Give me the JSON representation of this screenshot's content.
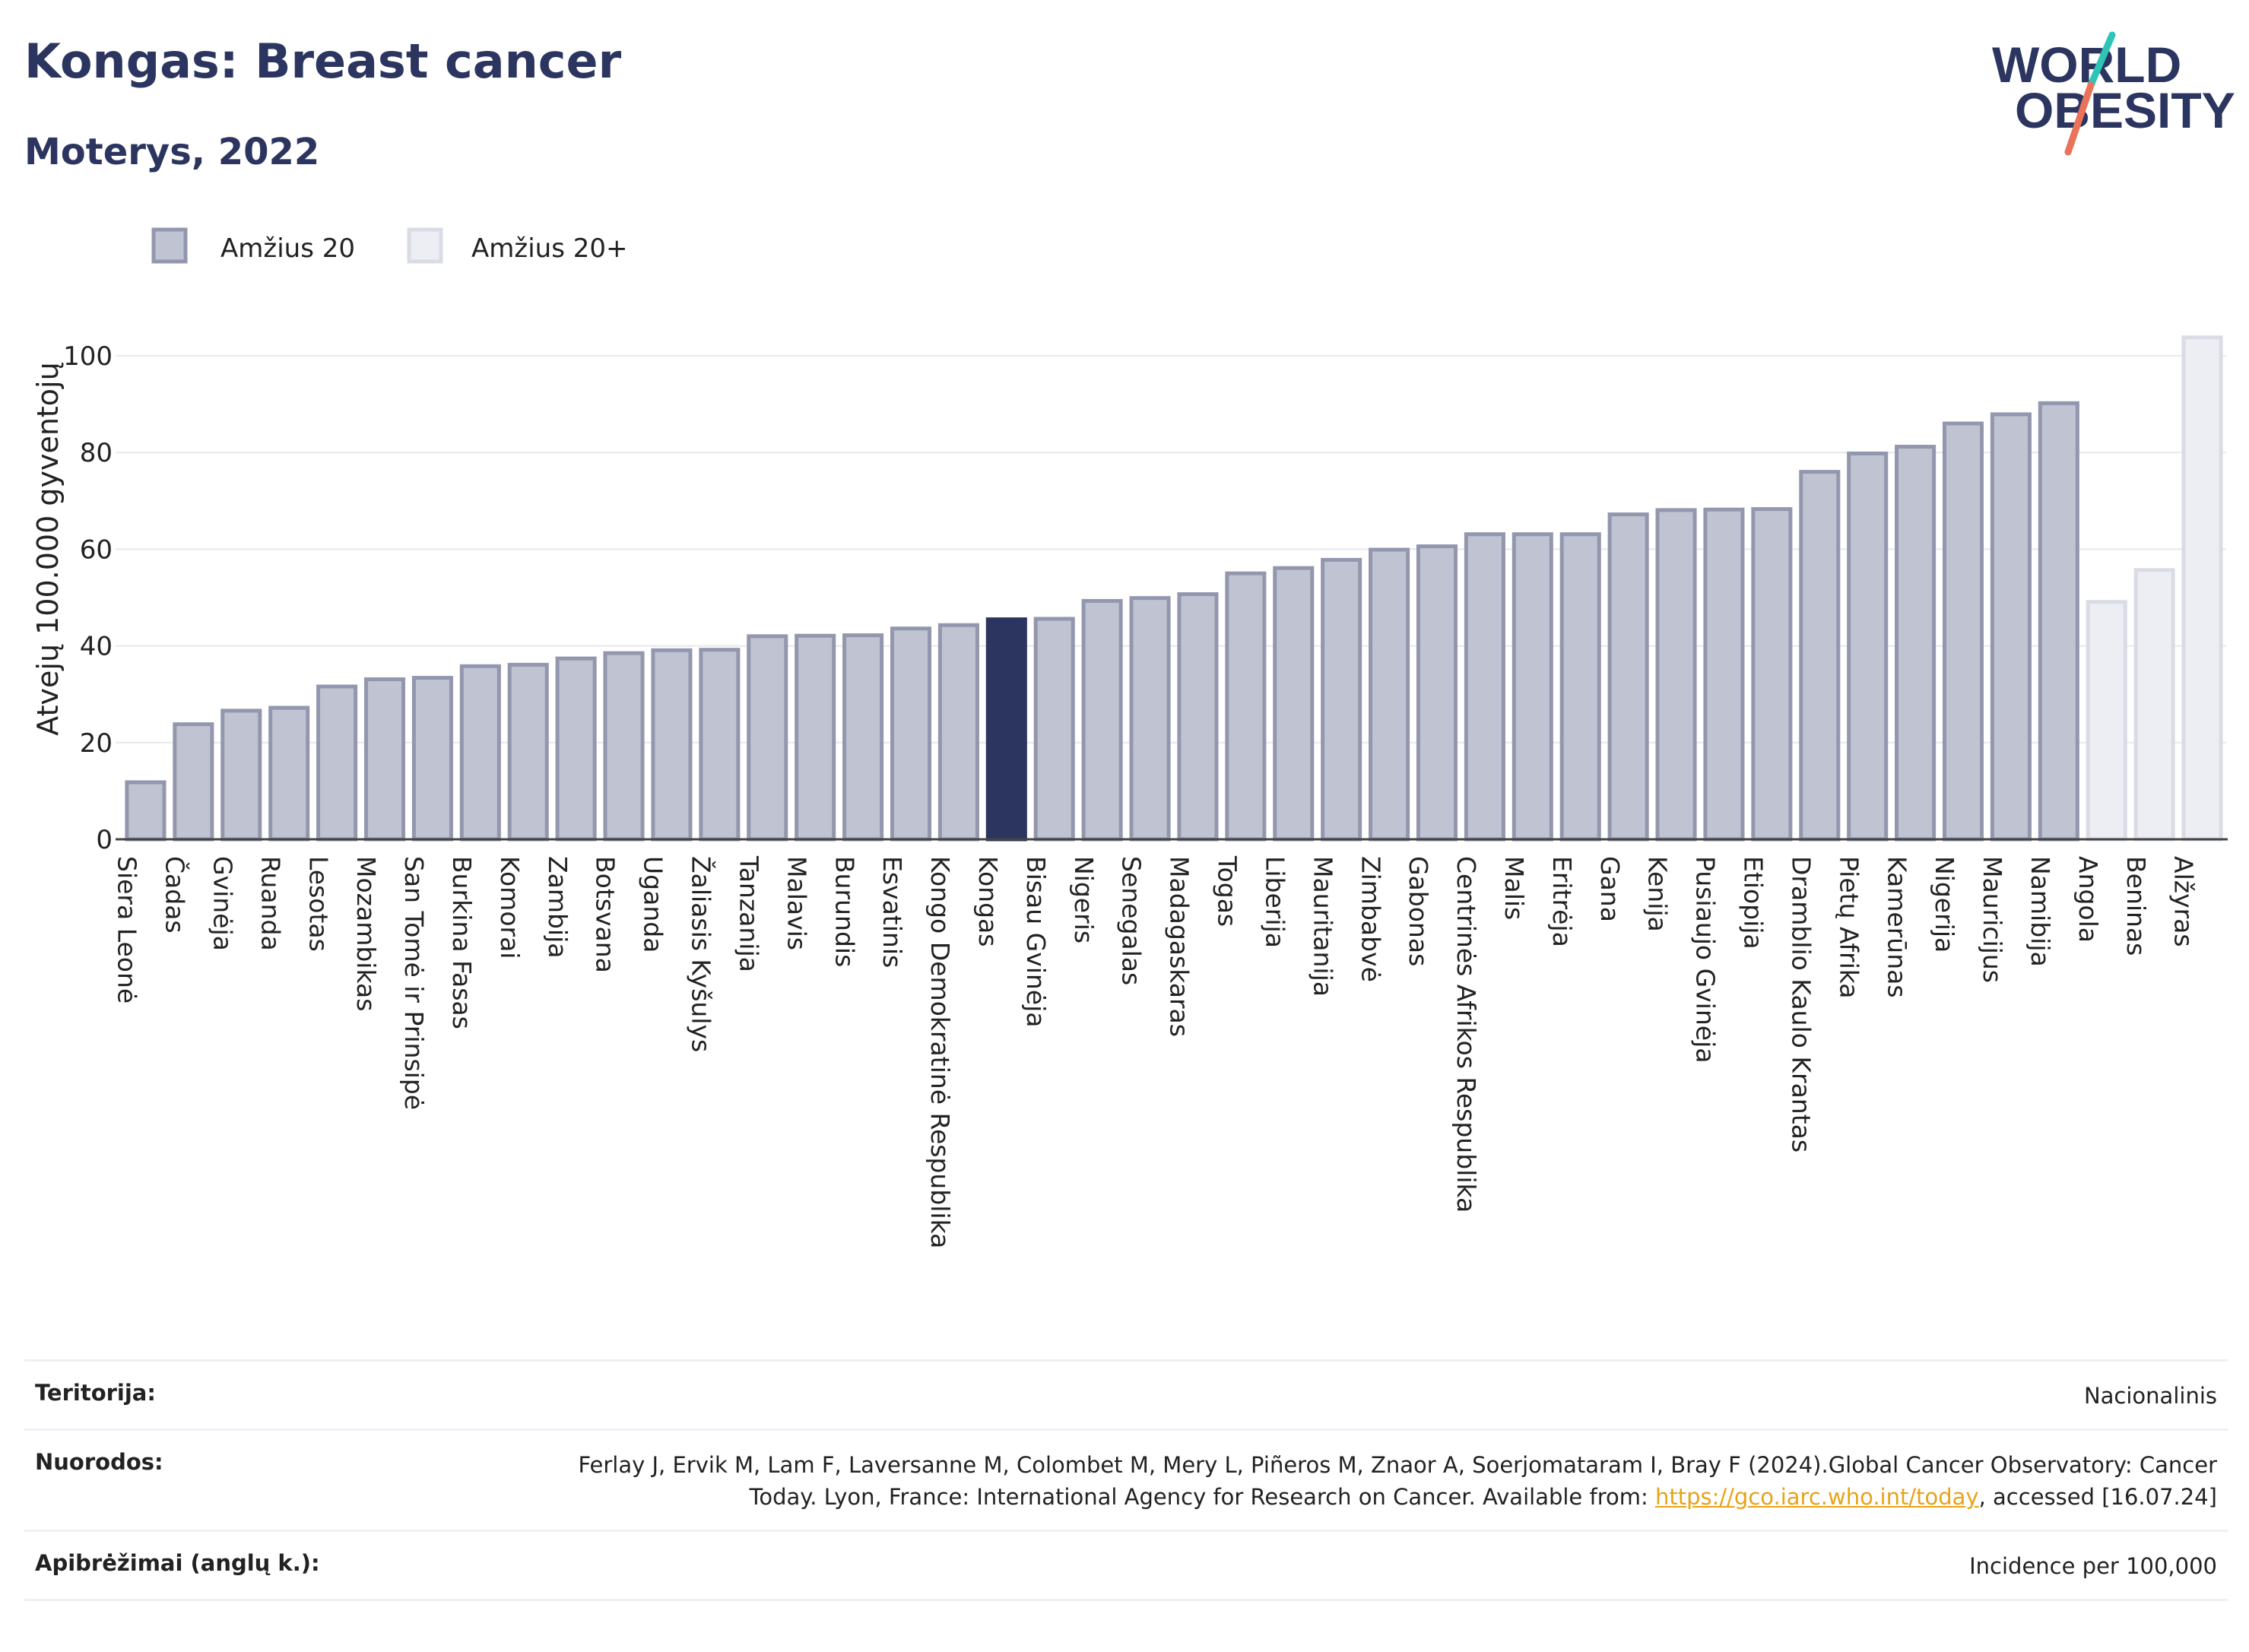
{
  "header": {
    "title": "Kongas: Breast cancer",
    "subtitle": "Moterys, 2022"
  },
  "logo": {
    "line1": "WORLD",
    "line2": "OBESITY"
  },
  "colors": {
    "primary": "#2b3560",
    "bar_fill": "#bfc3d2",
    "bar_stroke": "#9297ad",
    "bar_light_fill": "#eceef3",
    "bar_light_stroke": "#dadce5",
    "logo_teal": "#2ec4b6",
    "logo_coral": "#e8735a",
    "link": "#e8a317"
  },
  "chart_data": {
    "type": "bar",
    "ylabel": "Atvejų 100.000 gyventojų",
    "ylim": [
      0,
      105
    ],
    "yticks": [
      0,
      20,
      40,
      60,
      80,
      100
    ],
    "grid": true,
    "legend": [
      {
        "name": "Amžius 20",
        "style": "dark"
      },
      {
        "name": "Amžius 20+",
        "style": "light"
      }
    ],
    "highlight": "Kongas",
    "categories": [
      "Siera Leonė",
      "Čadas",
      "Gvinėja",
      "Ruanda",
      "Lesotas",
      "Mozambikas",
      "San Tomė ir Prinsipė",
      "Burkina Fasas",
      "Komorai",
      "Zambija",
      "Botsvana",
      "Uganda",
      "Žaliasis Kyšulys",
      "Tanzanija",
      "Malavis",
      "Burundis",
      "Esvatinis",
      "Kongo Demokratinė Respublika",
      "Kongas",
      "Bisau Gvinėja",
      "Nigeris",
      "Senegalas",
      "Madagaskaras",
      "Togas",
      "Liberija",
      "Mauritanija",
      "Zimbabvė",
      "Gabonas",
      "Centrinės Afrikos Respublika",
      "Malis",
      "Eritrėja",
      "Gana",
      "Kenija",
      "Pusiaujo Gvinėja",
      "Etiopija",
      "Dramblio Kaulo Krantas",
      "Pietų Afrika",
      "Kamerūnas",
      "Nigerija",
      "Mauricijus",
      "Namibija",
      "Angola",
      "Beninas",
      "Alžyras"
    ],
    "values": [
      11.8,
      23.8,
      26.6,
      27.2,
      31.6,
      33.1,
      33.4,
      35.8,
      36.1,
      37.4,
      38.5,
      39.1,
      39.2,
      42.0,
      42.1,
      42.2,
      43.6,
      44.3,
      45.5,
      45.6,
      49.3,
      49.9,
      50.7,
      55.0,
      56.1,
      57.8,
      59.9,
      60.6,
      63.1,
      63.1,
      63.1,
      67.2,
      68.1,
      68.2,
      68.3,
      76.0,
      79.8,
      81.2,
      86.0,
      87.9,
      90.2,
      49.1,
      55.7,
      103.8
    ],
    "series_group": [
      "20",
      "20",
      "20",
      "20",
      "20",
      "20",
      "20",
      "20",
      "20",
      "20",
      "20",
      "20",
      "20",
      "20",
      "20",
      "20",
      "20",
      "20",
      "20",
      "20",
      "20",
      "20",
      "20",
      "20",
      "20",
      "20",
      "20",
      "20",
      "20",
      "20",
      "20",
      "20",
      "20",
      "20",
      "20",
      "20",
      "20",
      "20",
      "20",
      "20",
      "20",
      "20+",
      "20+",
      "20+"
    ]
  },
  "footer": {
    "rows": [
      {
        "label": "Teritorija:",
        "value": "Nacionalinis"
      },
      {
        "label": "Nuorodos:",
        "value": "Ferlay J, Ervik M, Lam F, Laversanne M, Colombet M, Mery L, Piñeros M, Znaor A, Soerjomataram I, Bray F (2024).Global Cancer Observatory: Cancer Today. Lyon, France: International Agency for Research on Cancer. Available from:",
        "link": "https://gco.iarc.who.int/today",
        "suffix": ", accessed [16.07.24]"
      },
      {
        "label": "Apibrėžimai (anglų k.):",
        "value": "Incidence per 100,000"
      }
    ]
  }
}
